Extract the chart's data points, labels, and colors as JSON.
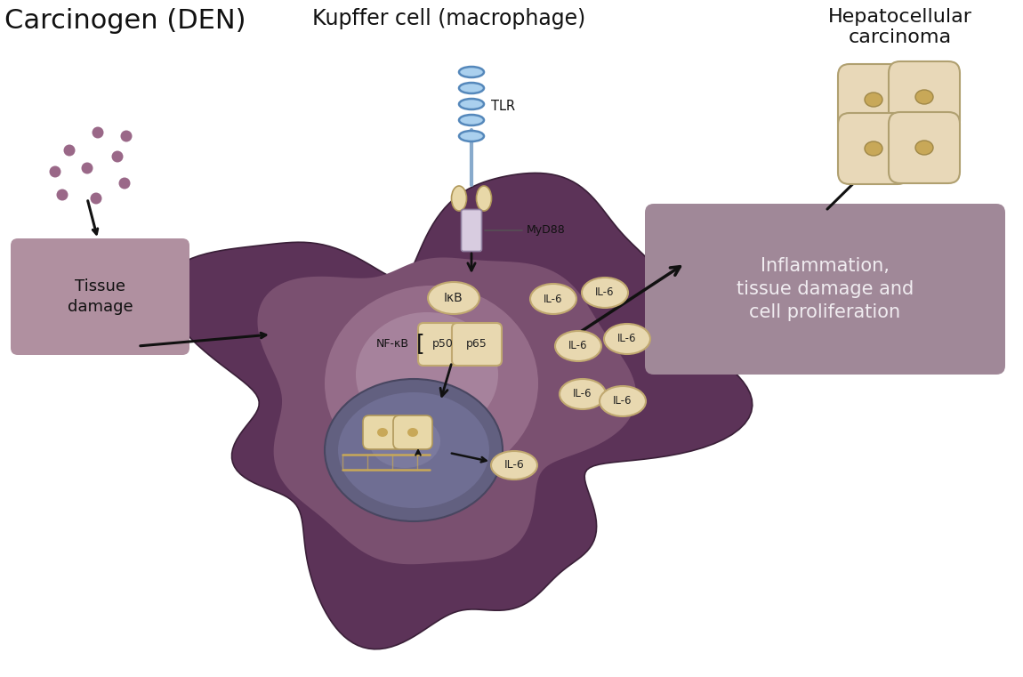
{
  "title_carcinogen": "Carcinogen (DEN)",
  "title_kupffer": "Kupffer cell (macrophage)",
  "title_hcc": "Hepatocellular\ncarcinoma",
  "title_inflammation": "Inflammation,\ntissue damage and\ncell proliferation",
  "title_tissue": "Tissue\ndamage",
  "label_tlr": "TLR",
  "label_myd88": "MyD88",
  "label_nfkb": "NF-κB",
  "label_ikb": "IκB",
  "label_p50": "p50",
  "label_p65": "p65",
  "label_il6": "IL-6",
  "color_cell_outer": "#5c3358",
  "color_cell_mid": "#7a5070",
  "color_cell_inner_glow": "#c0a0b8",
  "color_nucleus_outer": "#6a6888",
  "color_nucleus_inner": "#8080a0",
  "color_dots": "#9a6888",
  "color_tissue_box": "#b090a0",
  "color_inflammation_box": "#a08898",
  "color_il6_fill": "#e8d8b0",
  "color_il6_border": "#c0a870",
  "color_tlr_blue": "#5588bb",
  "color_tlr_light": "#88bbdd",
  "color_protein": "#e8d8a8",
  "color_protein_border": "#b0985a",
  "color_hcc_cell": "#e8d8b8",
  "color_hcc_border": "#b0a070",
  "color_hcc_nucleus": "#c8a858",
  "background": "#ffffff",
  "text_color": "#111111",
  "text_color_light": "#f0ecf0"
}
